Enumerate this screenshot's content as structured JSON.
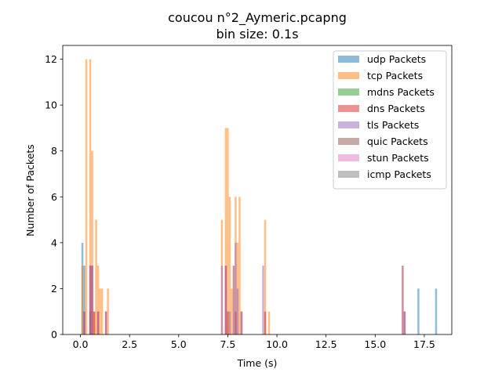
{
  "chart_data": {
    "type": "bar",
    "title": "coucou n°2_Aymeric.pcapng",
    "subtitle": "bin size: 0.1s",
    "xlabel": "Time (s)",
    "ylabel": "Number of Packets",
    "xlim": [
      -0.9,
      18.9
    ],
    "ylim": [
      0,
      12.6
    ],
    "bin_size": 0.1,
    "xticks": [
      0.0,
      2.5,
      5.0,
      7.5,
      10.0,
      12.5,
      15.0,
      17.5
    ],
    "xtick_labels": [
      "0.0",
      "2.5",
      "5.0",
      "7.5",
      "10.0",
      "12.5",
      "15.0",
      "17.5"
    ],
    "yticks": [
      0,
      2,
      4,
      6,
      8,
      10,
      12
    ],
    "ytick_labels": [
      "0",
      "2",
      "4",
      "6",
      "8",
      "10",
      "12"
    ],
    "legend_position": "top-right",
    "series": [
      {
        "name": "udp Packets",
        "color": "#1f77b4",
        "points": [
          [
            0.1,
            4
          ],
          [
            0.2,
            3
          ],
          [
            0.5,
            1
          ],
          [
            17.2,
            2
          ],
          [
            18.1,
            2
          ]
        ]
      },
      {
        "name": "tcp Packets",
        "color": "#ff7f0e",
        "points": [
          [
            0.1,
            3
          ],
          [
            0.3,
            12
          ],
          [
            0.5,
            12
          ],
          [
            0.6,
            8
          ],
          [
            0.7,
            1
          ],
          [
            0.8,
            5
          ],
          [
            0.9,
            3
          ],
          [
            1.0,
            2
          ],
          [
            1.1,
            2
          ],
          [
            1.4,
            2
          ],
          [
            7.2,
            5
          ],
          [
            7.4,
            9
          ],
          [
            7.5,
            9
          ],
          [
            7.6,
            6
          ],
          [
            7.7,
            2
          ],
          [
            7.8,
            3
          ],
          [
            7.9,
            6
          ],
          [
            8.0,
            4
          ],
          [
            8.1,
            6
          ],
          [
            9.4,
            5
          ],
          [
            9.6,
            1
          ],
          [
            16.4,
            3
          ]
        ]
      },
      {
        "name": "mdns Packets",
        "color": "#2ca02c",
        "points": []
      },
      {
        "name": "dns Packets",
        "color": "#d62728",
        "points": [
          [
            0.2,
            1
          ],
          [
            0.5,
            3
          ],
          [
            0.6,
            3
          ],
          [
            0.7,
            1
          ],
          [
            0.9,
            1
          ],
          [
            1.3,
            1
          ],
          [
            7.4,
            3
          ],
          [
            7.5,
            1
          ],
          [
            7.9,
            1
          ],
          [
            8.2,
            1
          ],
          [
            9.4,
            1
          ],
          [
            16.5,
            1
          ]
        ]
      },
      {
        "name": "tls Packets",
        "color": "#9467bd",
        "points": [
          [
            0.2,
            1
          ],
          [
            0.5,
            3
          ],
          [
            0.6,
            3
          ],
          [
            0.9,
            1
          ],
          [
            1.3,
            1
          ],
          [
            7.2,
            3
          ],
          [
            7.4,
            3
          ],
          [
            7.6,
            1
          ],
          [
            7.8,
            3
          ],
          [
            7.9,
            4
          ],
          [
            8.0,
            2
          ],
          [
            8.2,
            1
          ],
          [
            9.3,
            3
          ],
          [
            16.4,
            3
          ],
          [
            16.5,
            1
          ]
        ]
      },
      {
        "name": "quic Packets",
        "color": "#8c564b",
        "points": []
      },
      {
        "name": "stun Packets",
        "color": "#e377c2",
        "points": []
      },
      {
        "name": "icmp Packets",
        "color": "#7f7f7f",
        "points": []
      }
    ]
  }
}
